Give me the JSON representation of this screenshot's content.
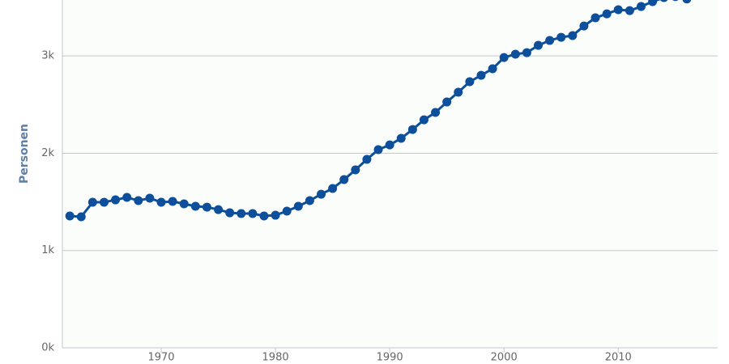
{
  "chart_data": {
    "type": "line",
    "y_label": "Personen",
    "x": [
      1962,
      1963,
      1964,
      1965,
      1966,
      1967,
      1968,
      1969,
      1970,
      1971,
      1972,
      1973,
      1974,
      1975,
      1976,
      1977,
      1978,
      1979,
      1980,
      1981,
      1982,
      1983,
      1984,
      1985,
      1986,
      1987,
      1988,
      1989,
      1990,
      1991,
      1992,
      1993,
      1994,
      1995,
      1996,
      1997,
      1998,
      1999,
      2000,
      2001,
      2002,
      2003,
      2004,
      2005,
      2006,
      2007,
      2008,
      2009,
      2010,
      2011,
      2012,
      2013,
      2014,
      2015,
      2016
    ],
    "series": [
      {
        "name": "Personen",
        "color": "#0d4f9a",
        "values": [
          1355,
          1347,
          1496,
          1496,
          1521,
          1546,
          1513,
          1538,
          1496,
          1505,
          1480,
          1455,
          1446,
          1421,
          1388,
          1380,
          1380,
          1355,
          1363,
          1405,
          1455,
          1513,
          1579,
          1638,
          1729,
          1829,
          1937,
          2037,
          2086,
          2153,
          2244,
          2344,
          2419,
          2527,
          2627,
          2735,
          2801,
          2868,
          2984,
          3018,
          3034,
          3109,
          3159,
          3192,
          3209,
          3308,
          3392,
          3433,
          3475,
          3466,
          3508,
          3558,
          3600,
          3610,
          3585
        ]
      }
    ],
    "xlim": [
      1961.35,
      2018.7
    ],
    "ylim": [
      0,
      3575
    ],
    "xticks": [
      1970,
      1980,
      1990,
      2000,
      2010
    ],
    "yticks": [
      {
        "value": 0,
        "label": "0k"
      },
      {
        "value": 1000,
        "label": "1k"
      },
      {
        "value": 2000,
        "label": "2k"
      },
      {
        "value": 3000,
        "label": "3k"
      }
    ],
    "grid": true
  }
}
